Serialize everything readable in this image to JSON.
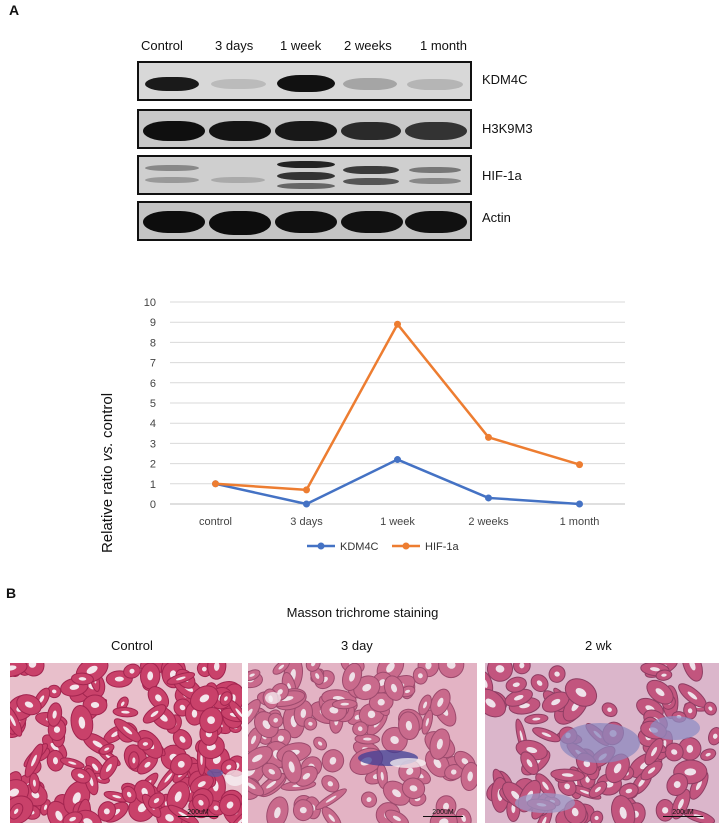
{
  "panels": {
    "a": "A",
    "b": "B"
  },
  "western_blot": {
    "timepoints": [
      "Control",
      "3 days",
      "1 week",
      "2 weeks",
      "1 month"
    ],
    "proteins": [
      "KDM4C",
      "H3K9M3",
      "HIF-1a",
      "Actin"
    ]
  },
  "chart_data": {
    "type": "line",
    "categories": [
      "control",
      "3 days",
      "1 week",
      "2 weeks",
      "1 month"
    ],
    "series": [
      {
        "name": "KDM4C",
        "values": [
          1,
          0,
          2.2,
          0.3,
          0
        ],
        "color": "#4472c4"
      },
      {
        "name": "HIF-1a",
        "values": [
          1,
          0.7,
          8.9,
          3.3,
          1.95
        ],
        "color": "#ed7d31"
      }
    ],
    "ylabel_prefix": "Relative ratio ",
    "ylabel_italic": "vs.",
    "ylabel_suffix": " control",
    "ylim": [
      0,
      10
    ],
    "yticks": [
      0,
      1,
      2,
      3,
      4,
      5,
      6,
      7,
      8,
      9,
      10
    ],
    "grid": true,
    "legend_position": "bottom"
  },
  "masson": {
    "title": "Masson trichrome staining",
    "labels": [
      "Control",
      "3 day",
      "2 wk"
    ],
    "scale_text": "200uM"
  }
}
